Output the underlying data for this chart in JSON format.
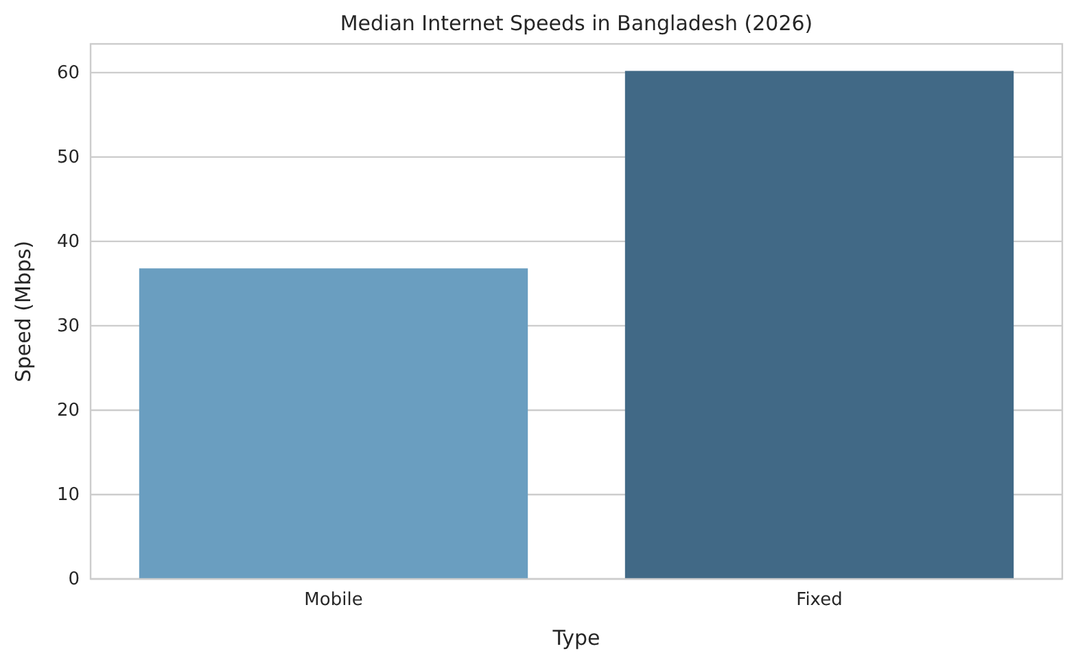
{
  "chart_data": {
    "type": "bar",
    "title": "Median Internet Speeds in Bangladesh (2026)",
    "xlabel": "Type",
    "ylabel": "Speed (Mbps)",
    "categories": [
      "Mobile",
      "Fixed"
    ],
    "values": [
      36.8,
      60.2
    ],
    "colors": [
      "#6a9ec0",
      "#416986"
    ],
    "ylim": [
      0,
      63.4
    ],
    "yticks": [
      0,
      10,
      20,
      30,
      40,
      50,
      60
    ],
    "grid": "y"
  }
}
